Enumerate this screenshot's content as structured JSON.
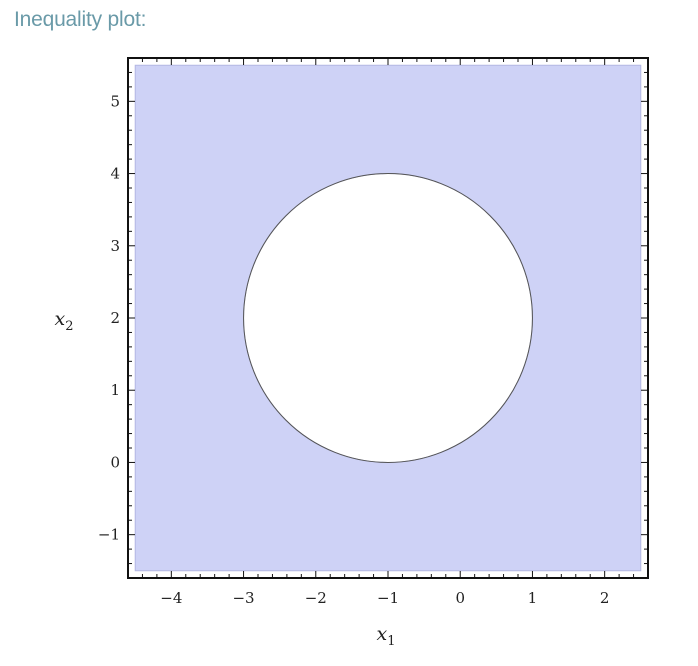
{
  "header": {
    "title": "Inequality plot:"
  },
  "chart_data": {
    "type": "region",
    "title": "",
    "xlabel": "x",
    "xlabel_sub": "1",
    "ylabel": "x",
    "ylabel_sub": "2",
    "xlim": [
      -4.6,
      2.6
    ],
    "ylim": [
      -1.6,
      5.6
    ],
    "region_bounds": {
      "x": [
        -4.5,
        2.5
      ],
      "y": [
        -1.5,
        5.5
      ]
    },
    "excluded_circle": {
      "center": [
        -1,
        2
      ],
      "radius": 2
    },
    "x_ticks": [
      -4,
      -3,
      -2,
      -1,
      0,
      1,
      2
    ],
    "x_tick_labels": [
      "−4",
      "−3",
      "−2",
      "−1",
      "0",
      "1",
      "2"
    ],
    "y_ticks": [
      -1,
      0,
      1,
      2,
      3,
      4,
      5
    ],
    "y_tick_labels": [
      "−1",
      "0",
      "1",
      "2",
      "3",
      "4",
      "5"
    ],
    "minor_step": 0.2,
    "fill_color": "#ced2f6",
    "fill_edge_color": "#b3b7e2",
    "boundary_color": "#555555",
    "grid": false
  }
}
